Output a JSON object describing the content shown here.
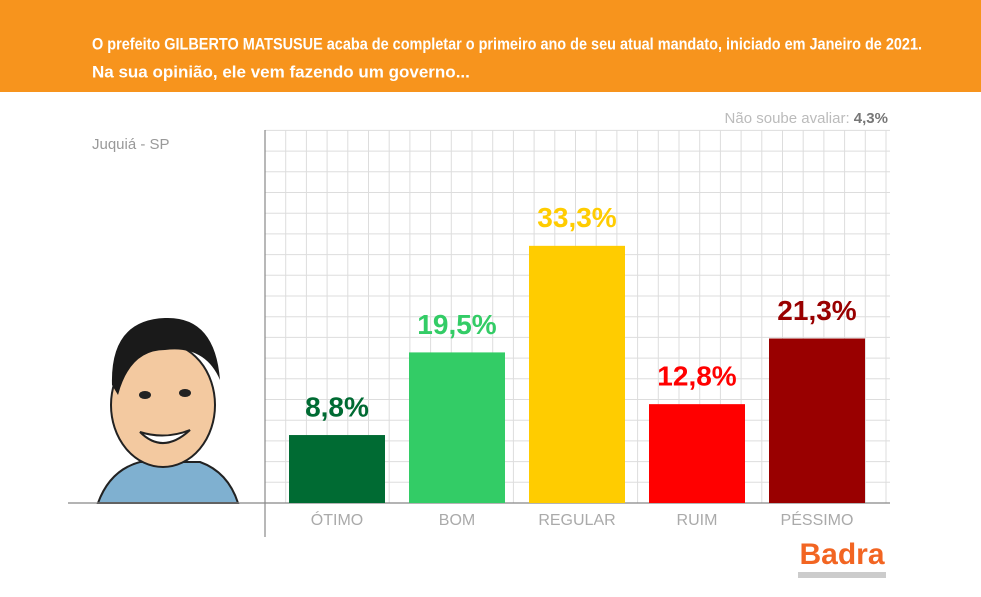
{
  "chart_data": {
    "type": "bar",
    "title": "O prefeito GILBERTO MATSUSUE acaba de completar o primeiro ano de seu atual mandato, iniciado em Janeiro de 2021.",
    "subtitle": "Na sua opinião, ele vem fazendo um governo...",
    "location": "Juquiá - SP",
    "note": {
      "label": "Não soube avaliar:",
      "value": 4.3,
      "value_label": "4,3%"
    },
    "categories": [
      "ÓTIMO",
      "BOM",
      "REGULAR",
      "RUIM",
      "PÉSSIMO"
    ],
    "values": [
      8.8,
      19.5,
      33.3,
      12.8,
      21.3
    ],
    "value_labels": [
      "8,8%",
      "19,5%",
      "33,3%",
      "12,8%",
      "21,3%"
    ],
    "colors": [
      "#006b33",
      "#33cc66",
      "#ffcc00",
      "#ff0000",
      "#990000"
    ],
    "ylim": [
      0,
      48.3
    ],
    "grid": true,
    "brand": "Badra"
  }
}
